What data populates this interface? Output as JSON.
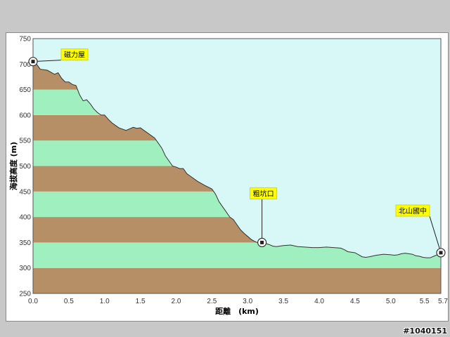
{
  "chart_data": {
    "type": "area",
    "xlabel": "距離　(km)",
    "ylabel": "海拔高度 (m)",
    "xlim": [
      0,
      5.7
    ],
    "ylim": [
      250,
      750
    ],
    "x_ticks": [
      "0.0",
      "0.5",
      "1.0",
      "1.5",
      "2.0",
      "2.5",
      "3.0",
      "3.5",
      "4.0",
      "4.5",
      "5.0",
      "5.5",
      "5.7"
    ],
    "x_tick_values": [
      0,
      0.5,
      1.0,
      1.5,
      2.0,
      2.5,
      3.0,
      3.5,
      4.0,
      4.5,
      5.0,
      5.5,
      5.7
    ],
    "y_ticks": [
      250,
      300,
      350,
      400,
      450,
      500,
      550,
      600,
      650,
      700,
      750
    ],
    "band_colors": [
      "#b68f67",
      "#9ff0be"
    ],
    "sky_color": "#d8f8f8",
    "profile": {
      "x": [
        0.0,
        0.05,
        0.1,
        0.2,
        0.3,
        0.35,
        0.4,
        0.45,
        0.5,
        0.55,
        0.6,
        0.65,
        0.7,
        0.75,
        0.8,
        0.85,
        0.9,
        0.95,
        1.0,
        1.05,
        1.1,
        1.15,
        1.2,
        1.3,
        1.4,
        1.45,
        1.5,
        1.55,
        1.6,
        1.65,
        1.7,
        1.75,
        1.8,
        1.85,
        1.9,
        1.95,
        2.0,
        2.05,
        2.1,
        2.15,
        2.2,
        2.3,
        2.4,
        2.5,
        2.55,
        2.6,
        2.65,
        2.7,
        2.75,
        2.8,
        2.85,
        2.9,
        2.95,
        3.0,
        3.05,
        3.1,
        3.15,
        3.2,
        3.25,
        3.3,
        3.35,
        3.4,
        3.5,
        3.6,
        3.7,
        3.8,
        3.9,
        4.0,
        4.1,
        4.2,
        4.3,
        4.35,
        4.4,
        4.45,
        4.5,
        4.55,
        4.6,
        4.65,
        4.7,
        4.8,
        4.9,
        5.0,
        5.05,
        5.1,
        5.15,
        5.2,
        5.25,
        5.3,
        5.35,
        5.4,
        5.45,
        5.5,
        5.55,
        5.6,
        5.65,
        5.7
      ],
      "y": [
        705,
        700,
        690,
        688,
        680,
        683,
        672,
        665,
        665,
        660,
        658,
        640,
        628,
        630,
        622,
        612,
        605,
        600,
        600,
        592,
        585,
        580,
        575,
        570,
        576,
        574,
        575,
        570,
        565,
        560,
        555,
        545,
        535,
        520,
        510,
        500,
        498,
        495,
        495,
        485,
        480,
        470,
        462,
        455,
        445,
        430,
        420,
        410,
        400,
        395,
        385,
        375,
        368,
        362,
        356,
        352,
        349,
        350,
        348,
        346,
        343,
        342,
        344,
        345,
        342,
        341,
        340,
        340,
        341,
        340,
        339,
        336,
        332,
        331,
        330,
        326,
        322,
        321,
        322,
        325,
        327,
        326,
        325,
        326,
        328,
        329,
        328,
        327,
        324,
        323,
        321,
        320,
        320,
        323,
        326,
        330
      ]
    },
    "annotations": [
      {
        "label": "磁力屋",
        "x": 0.0,
        "y": 705
      },
      {
        "label": "粗坑口",
        "x": 3.2,
        "y": 350
      },
      {
        "label": "北山國中",
        "x": 5.7,
        "y": 330
      }
    ]
  },
  "watermark": "#1040151"
}
